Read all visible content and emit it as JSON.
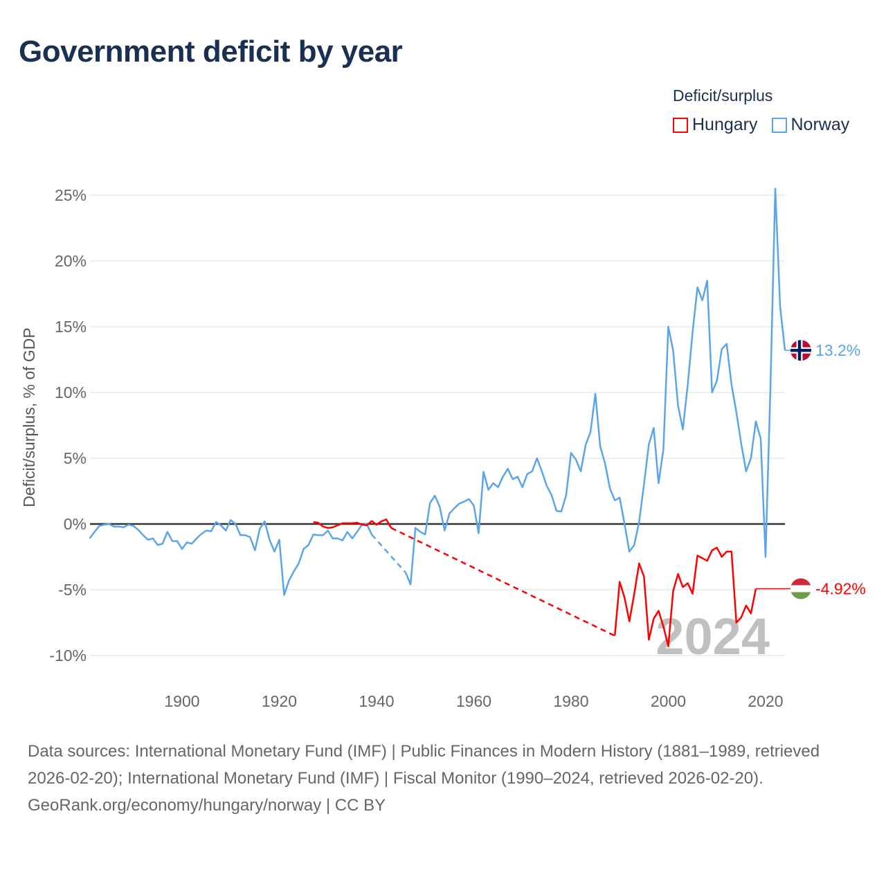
{
  "header": {
    "title": "Government deficit by year"
  },
  "legend": {
    "title": "Deficit/surplus",
    "items": [
      {
        "label": "Hungary",
        "color": "#ff0000"
      },
      {
        "label": "Norway",
        "color": "#5aa5ea"
      }
    ]
  },
  "chart_data": {
    "type": "line",
    "title": "Government deficit by year",
    "ylabel": "Deficit/surplus, % of GDP",
    "xlabel": "",
    "xlim": [
      1881,
      2024
    ],
    "ylim": [
      -11.5,
      27
    ],
    "x_ticks": [
      1900,
      1920,
      1940,
      1960,
      1980,
      2000,
      2020
    ],
    "x_tick_labels": [
      "1900",
      "1920",
      "1940",
      "1960",
      "1980",
      "2000",
      "2020"
    ],
    "y_ticks": [
      -10,
      -5,
      0,
      5,
      10,
      15,
      20,
      25
    ],
    "y_tick_labels": [
      "-10%",
      "-5%",
      "0%",
      "5%",
      "10%",
      "15%",
      "20%",
      "25%"
    ],
    "grid": true,
    "legend_position": "top-right",
    "year_label": "2024",
    "series": [
      {
        "name": "Norway",
        "color": "#5aa5ea",
        "start_year": 1881,
        "end_label": "13.2%",
        "flag": "norway-flag",
        "values": [
          -1.1,
          -0.6,
          -0.15,
          -0.05,
          0,
          -0.2,
          -0.2,
          -0.25,
          -0.05,
          -0.15,
          -0.45,
          -0.85,
          -1.2,
          -1.1,
          -1.6,
          -1.5,
          -0.6,
          -1.3,
          -1.3,
          -1.9,
          -1.4,
          -1.5,
          -1.1,
          -0.75,
          -0.5,
          -0.55,
          0.15,
          -0.1,
          -0.5,
          0.3,
          0,
          -0.85,
          -0.85,
          -1.0,
          -2.0,
          -0.35,
          0.2,
          -1.2,
          -2.1,
          -1.2,
          -5.4,
          -4.3,
          -3.6,
          -3.0,
          -1.9,
          -1.6,
          -0.8,
          -0.85,
          -0.85,
          -0.5,
          -1.1,
          -1.1,
          -1.25,
          -0.6,
          -1.1,
          -0.6,
          -0.05,
          0,
          -0.8,
          null,
          null,
          null,
          null,
          null,
          null,
          -3.7,
          -4.6,
          -0.3,
          -0.6,
          -0.8,
          1.6,
          2.15,
          1.3,
          -0.5,
          0.8,
          1.2,
          1.55,
          1.7,
          1.9,
          1.4,
          -0.7,
          3.96,
          2.6,
          3.1,
          2.8,
          3.6,
          4.2,
          3.4,
          3.6,
          2.8,
          3.8,
          4.0,
          5.0,
          4.0,
          2.9,
          2.2,
          1.0,
          0.95,
          2.2,
          5.4,
          4.9,
          4.0,
          6.0,
          7.0,
          9.9,
          5.9,
          4.6,
          2.7,
          1.8,
          2.0,
          0,
          -2.1,
          -1.6,
          0.15,
          3.0,
          6.05,
          7.3,
          3.1,
          5.7,
          15.0,
          13.2,
          9.0,
          7.2,
          10.6,
          14.6,
          18.0,
          17.0,
          18.5,
          10.0,
          10.9,
          13.3,
          13.7,
          10.6,
          8.5,
          6.1,
          4.0,
          5.0,
          7.8,
          6.5,
          -2.5,
          10.3,
          25.5,
          16.5,
          13.2
        ]
      },
      {
        "name": "Hungary",
        "color": "#ff0000",
        "start_year": 1927,
        "end_label": "-4.92%",
        "flag": "hungary-flag",
        "values": [
          0.15,
          0.1,
          -0.2,
          -0.3,
          -0.25,
          -0.1,
          0.05,
          0.05,
          0.05,
          0.1,
          -0.05,
          -0.1,
          0.23,
          -0.05,
          0.2,
          0.35,
          -0.3,
          null,
          null,
          null,
          null,
          null,
          null,
          null,
          null,
          null,
          null,
          null,
          null,
          null,
          null,
          null,
          null,
          null,
          null,
          null,
          null,
          null,
          null,
          null,
          null,
          null,
          null,
          null,
          null,
          null,
          null,
          null,
          null,
          null,
          null,
          null,
          null,
          null,
          null,
          null,
          null,
          null,
          null,
          null,
          null,
          null,
          -8.5,
          -4.4,
          -5.6,
          -7.4,
          -5.3,
          -3.0,
          -4.0,
          -8.8,
          -7.2,
          -6.6,
          -7.8,
          -9.3,
          -5.1,
          -3.8,
          -4.8,
          -4.5,
          -5.3,
          -2.4,
          -2.6,
          -2.8,
          -2.0,
          -1.8,
          -2.5,
          -2.1,
          -2.1,
          -7.5,
          -7.1,
          -6.2,
          -6.8,
          -4.92
        ]
      }
    ]
  },
  "footer": {
    "sources": "Data sources: International Monetary Fund (IMF) | Public Finances in Modern History (1881–1989, retrieved 2026-02-20); International Monetary Fund (IMF) | Fiscal Monitor (1990–2024, retrieved 2026-02-20).",
    "credit": "GeoRank.org/economy/hungary/norway | CC BY"
  }
}
